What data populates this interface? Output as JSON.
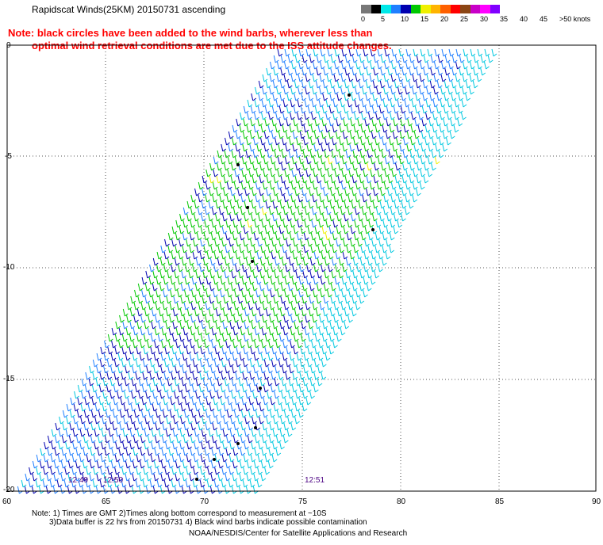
{
  "header": {
    "title": "Rapidscat Winds(25KM) 20150731 ascending",
    "note_line1": "Note: black circles have been added to the wind barbs, wherever less than",
    "note_line2": "optimal wind retrieval conditions are met due to the ISS attitude changes."
  },
  "legend": {
    "colors": [
      "#777777",
      "#000000",
      "#00e8e8",
      "#1f7fff",
      "#0000b0",
      "#00c800",
      "#f0f000",
      "#ffb400",
      "#ff6000",
      "#ff0000",
      "#8b4513",
      "#c800c8",
      "#ff00ff",
      "#8000ff"
    ],
    "labels": [
      "0",
      "5",
      "10",
      "15",
      "20",
      "25",
      "30",
      "35",
      "40",
      "45",
      ">50 knots"
    ]
  },
  "axes": {
    "y_ticks": [
      "0",
      "-5",
      "-10",
      "-15",
      "-20"
    ],
    "x_ticks": [
      "60",
      "65",
      "70",
      "75",
      "80",
      "85",
      "90"
    ]
  },
  "times": [
    "12:49",
    "12:50",
    "12:51"
  ],
  "footer": {
    "line1": "Note: 1) Times are GMT 2)Times along bottom correspond to measurement at ~10S",
    "line2": "3)Data buffer is 22 hrs from 20150731 4) Black wind barbs indicate possible contamination",
    "credit": "NOAA/NESDIS/Center for Satellite Applications and Research"
  },
  "colors": {
    "barb_light": "#00c8e0",
    "barb_mid": "#1f7fff",
    "barb_dark": "#0000b0",
    "barb_green": "#00c800",
    "barb_yellow": "#f0f000",
    "note_red": "#ff0000",
    "time_purple": "#4b0082"
  }
}
